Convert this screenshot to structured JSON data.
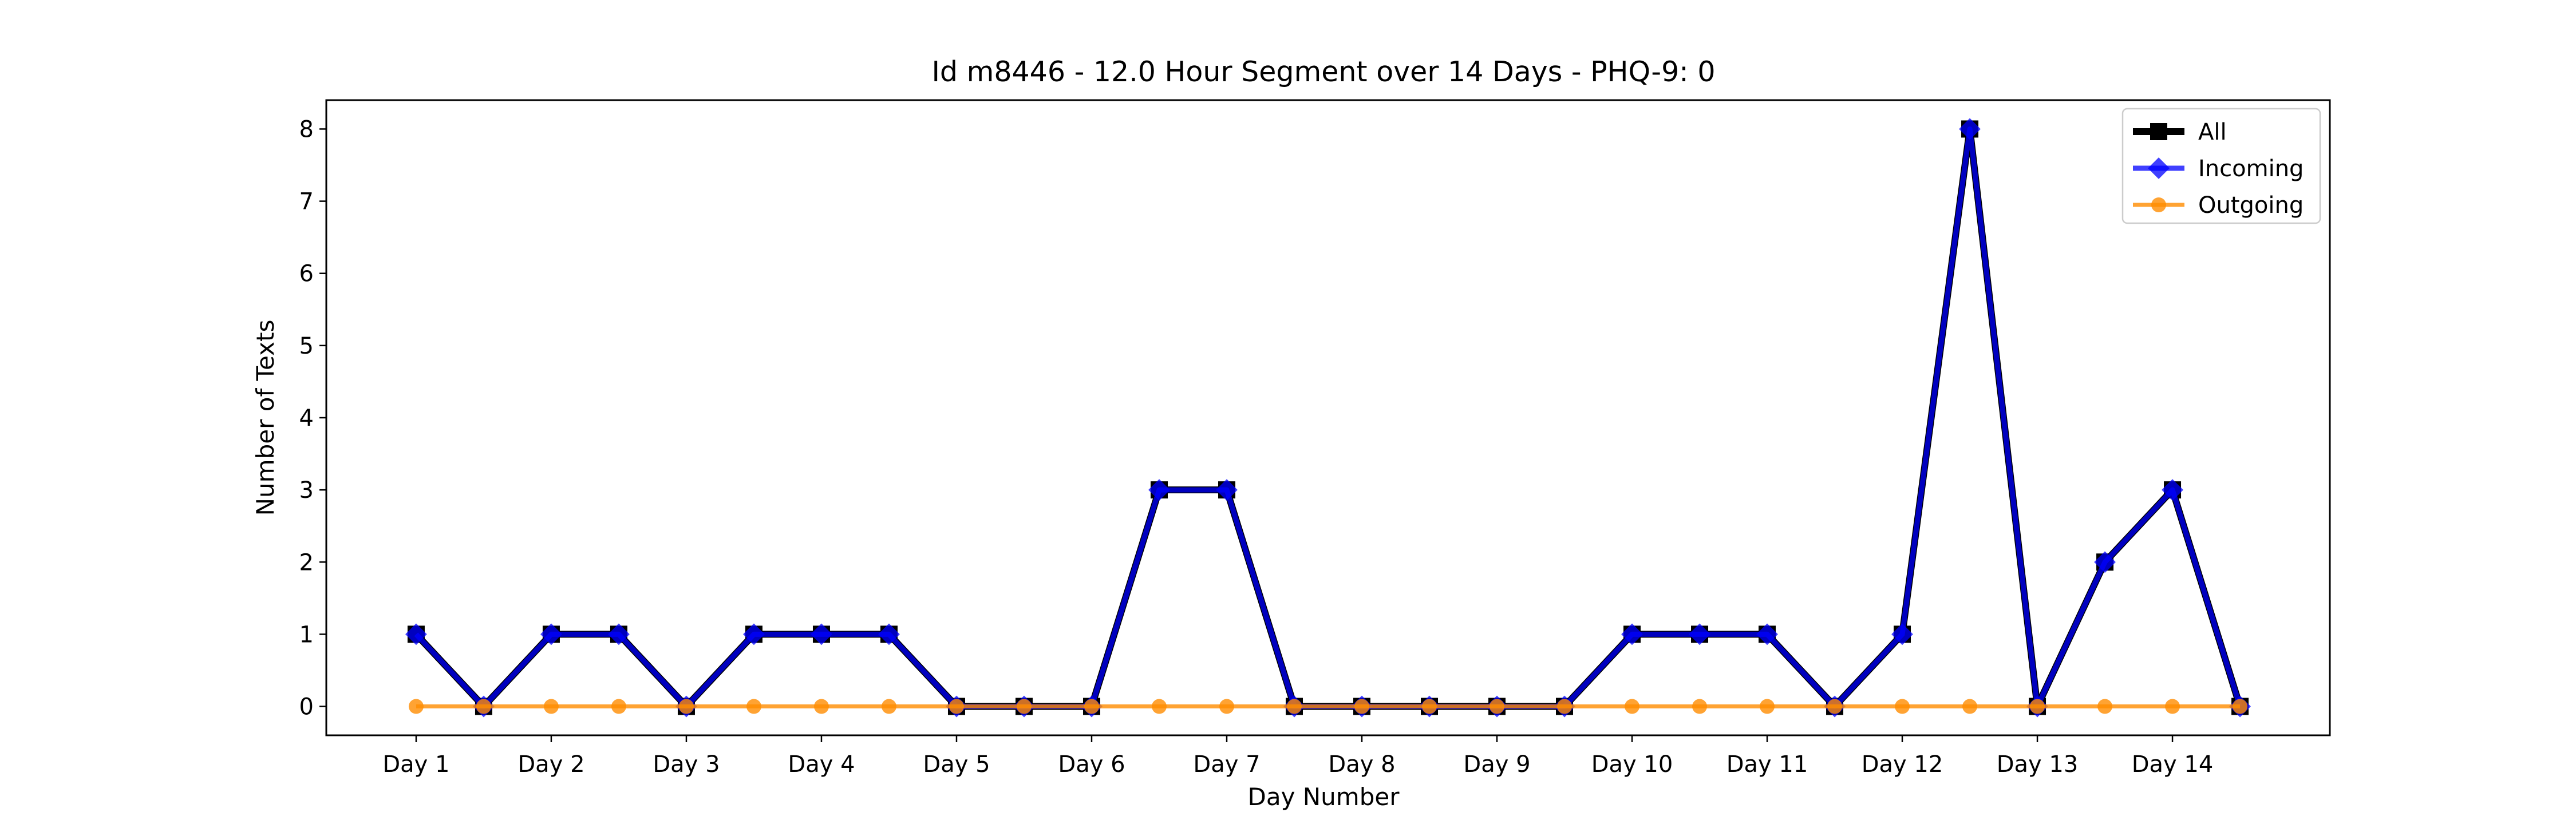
{
  "chart_data": {
    "type": "line",
    "title": "Id m8446 - 12.0 Hour Segment over 14 Days - PHQ-9: 0",
    "xlabel": "Day Number",
    "ylabel": "Number of Texts",
    "x": [
      1,
      1.5,
      2,
      2.5,
      3,
      3.5,
      4,
      4.5,
      5,
      5.5,
      6,
      6.5,
      7,
      7.5,
      8,
      8.5,
      9,
      9.5,
      10,
      10.5,
      11,
      11.5,
      12,
      12.5,
      13,
      13.5,
      14,
      14.5
    ],
    "xticks": [
      1,
      2,
      3,
      4,
      5,
      6,
      7,
      8,
      9,
      10,
      11,
      12,
      13,
      14
    ],
    "xticklabels": [
      "Day 1",
      "Day 2",
      "Day 3",
      "Day 4",
      "Day 5",
      "Day 6",
      "Day 7",
      "Day 8",
      "Day 9",
      "Day 10",
      "Day 11",
      "Day 12",
      "Day 13",
      "Day 14"
    ],
    "yticks": [
      0,
      1,
      2,
      3,
      4,
      5,
      6,
      7,
      8
    ],
    "yticklabels": [
      "0",
      "1",
      "2",
      "3",
      "4",
      "5",
      "6",
      "7",
      "8"
    ],
    "xlim": [
      0.335,
      15.165
    ],
    "ylim": [
      -0.4,
      8.4
    ],
    "grid": false,
    "legend_position": "top-right",
    "series": [
      {
        "name": "All",
        "color": "#000000",
        "marker": "square",
        "values": [
          1,
          0,
          1,
          1,
          0,
          1,
          1,
          1,
          0,
          0,
          0,
          3,
          3,
          0,
          0,
          0,
          0,
          0,
          1,
          1,
          1,
          0,
          1,
          8,
          0,
          2,
          3,
          0
        ]
      },
      {
        "name": "Incoming",
        "color": "#0000ff",
        "marker": "diamond",
        "values": [
          1,
          0,
          1,
          1,
          0,
          1,
          1,
          1,
          0,
          0,
          0,
          3,
          3,
          0,
          0,
          0,
          0,
          0,
          1,
          1,
          1,
          0,
          1,
          8,
          0,
          2,
          3,
          0
        ]
      },
      {
        "name": "Outgoing",
        "color": "#ff8c00",
        "marker": "circle",
        "values": [
          0,
          0,
          0,
          0,
          0,
          0,
          0,
          0,
          0,
          0,
          0,
          0,
          0,
          0,
          0,
          0,
          0,
          0,
          0,
          0,
          0,
          0,
          0,
          0,
          0,
          0,
          0,
          0
        ]
      }
    ]
  }
}
